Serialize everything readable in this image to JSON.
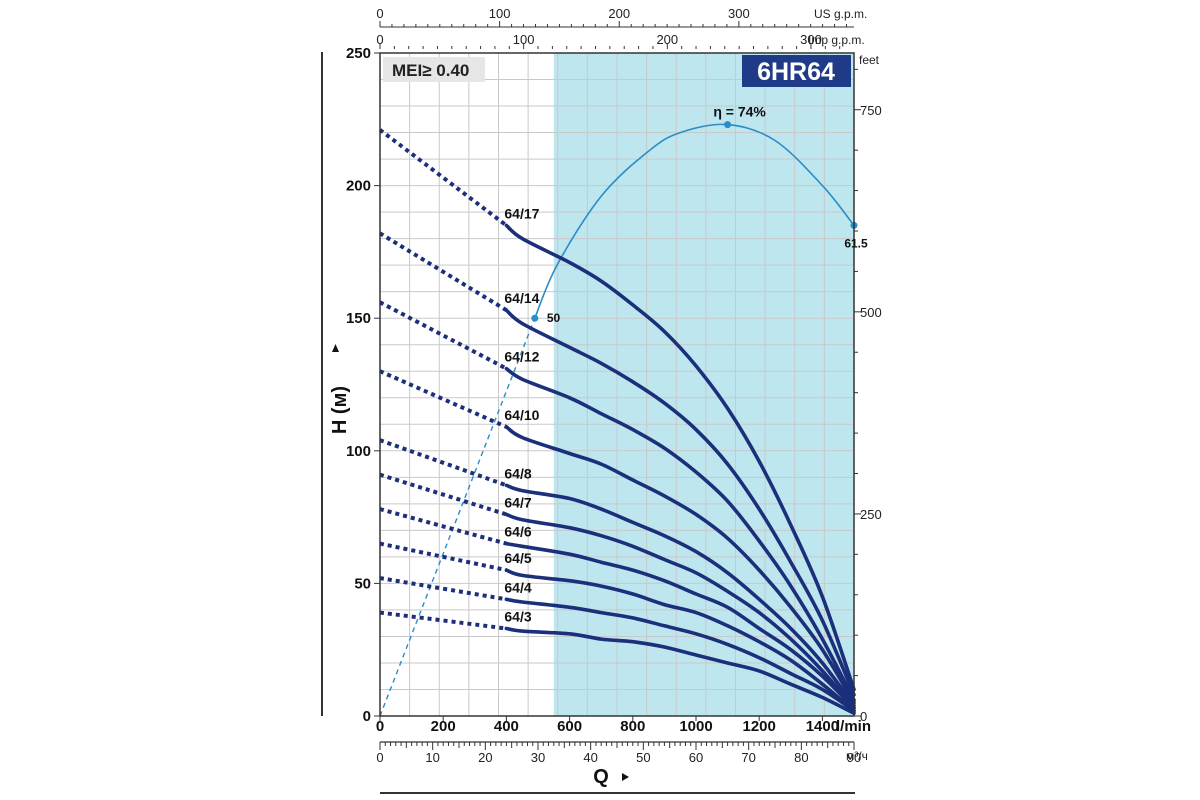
{
  "chart_data": {
    "type": "line",
    "model": "6HR64",
    "badge": "MEI≥ 0.40",
    "xlabel_units": "l/min",
    "x_secondary_units": "м³/ч",
    "ylabel": "H (м)",
    "y_right_units": "feet",
    "x_title": "Q",
    "x_top_units_1": "US g.p.m.",
    "x_top_units_2": "Imp g.p.m.",
    "xlim": [
      0,
      1500
    ],
    "ylim": [
      0,
      250
    ],
    "x_ticks": [
      "0",
      "200",
      "400",
      "600",
      "800",
      "1000",
      "1200",
      "1400"
    ],
    "y_ticks": [
      "0",
      "50",
      "100",
      "150",
      "200",
      "250"
    ],
    "m3h_ticks": [
      "0",
      "10",
      "20",
      "30",
      "40",
      "50",
      "60",
      "70",
      "80",
      "90"
    ],
    "us_gpm_ticks": [
      "0",
      "100",
      "200",
      "300"
    ],
    "imp_gpm_ticks": [
      "0",
      "100",
      "200",
      "300"
    ],
    "feet_ticks": [
      "0",
      "250",
      "500",
      "750"
    ],
    "recommended_range": [
      550,
      1500
    ],
    "efficiency": {
      "peak_label": "η = 74%",
      "left_label": "50",
      "right_label": "61.5",
      "points": [
        [
          0,
          0
        ],
        [
          490,
          150
        ],
        [
          560,
          170
        ],
        [
          700,
          196
        ],
        [
          850,
          213
        ],
        [
          950,
          220
        ],
        [
          1100,
          223
        ],
        [
          1250,
          217
        ],
        [
          1400,
          200
        ],
        [
          1500,
          185
        ]
      ]
    },
    "series": [
      {
        "name": "64/17",
        "dashed": [
          [
            0,
            221
          ],
          [
            400,
            185
          ]
        ],
        "solid": [
          [
            400,
            185
          ],
          [
            450,
            180
          ],
          [
            600,
            171
          ],
          [
            700,
            164
          ],
          [
            800,
            155
          ],
          [
            900,
            145
          ],
          [
            1000,
            132
          ],
          [
            1100,
            116
          ],
          [
            1200,
            96
          ],
          [
            1300,
            72
          ],
          [
            1400,
            45
          ],
          [
            1500,
            10
          ]
        ]
      },
      {
        "name": "64/14",
        "dashed": [
          [
            0,
            182
          ],
          [
            400,
            153
          ]
        ],
        "solid": [
          [
            400,
            153
          ],
          [
            450,
            148
          ],
          [
            600,
            139
          ],
          [
            700,
            133
          ],
          [
            800,
            126
          ],
          [
            900,
            118
          ],
          [
            1000,
            108
          ],
          [
            1100,
            95
          ],
          [
            1200,
            78
          ],
          [
            1300,
            58
          ],
          [
            1400,
            36
          ],
          [
            1500,
            8
          ]
        ]
      },
      {
        "name": "64/12",
        "dashed": [
          [
            0,
            156
          ],
          [
            400,
            131
          ]
        ],
        "solid": [
          [
            400,
            131
          ],
          [
            450,
            127
          ],
          [
            600,
            120
          ],
          [
            700,
            114
          ],
          [
            800,
            108
          ],
          [
            900,
            101
          ],
          [
            1000,
            92
          ],
          [
            1100,
            81
          ],
          [
            1200,
            66
          ],
          [
            1300,
            49
          ],
          [
            1400,
            29
          ],
          [
            1500,
            6
          ]
        ]
      },
      {
        "name": "64/10",
        "dashed": [
          [
            0,
            130
          ],
          [
            400,
            109
          ]
        ],
        "solid": [
          [
            400,
            109
          ],
          [
            450,
            105
          ],
          [
            600,
            99
          ],
          [
            700,
            95
          ],
          [
            800,
            89
          ],
          [
            900,
            83
          ],
          [
            1000,
            76
          ],
          [
            1100,
            67
          ],
          [
            1200,
            55
          ],
          [
            1300,
            41
          ],
          [
            1400,
            25
          ],
          [
            1500,
            5
          ]
        ]
      },
      {
        "name": "64/8",
        "dashed": [
          [
            0,
            104
          ],
          [
            400,
            87
          ]
        ],
        "solid": [
          [
            400,
            87
          ],
          [
            450,
            85
          ],
          [
            600,
            82
          ],
          [
            700,
            78
          ],
          [
            800,
            73
          ],
          [
            900,
            68
          ],
          [
            1000,
            62
          ],
          [
            1100,
            54
          ],
          [
            1200,
            44
          ],
          [
            1300,
            33
          ],
          [
            1400,
            20
          ],
          [
            1500,
            4
          ]
        ]
      },
      {
        "name": "64/7",
        "dashed": [
          [
            0,
            91
          ],
          [
            400,
            76
          ]
        ],
        "solid": [
          [
            400,
            76
          ],
          [
            450,
            74
          ],
          [
            600,
            71
          ],
          [
            700,
            68
          ],
          [
            800,
            64
          ],
          [
            900,
            59
          ],
          [
            1000,
            54
          ],
          [
            1100,
            47
          ],
          [
            1200,
            39
          ],
          [
            1300,
            29
          ],
          [
            1400,
            17
          ],
          [
            1500,
            3
          ]
        ]
      },
      {
        "name": "64/6",
        "dashed": [
          [
            0,
            78
          ],
          [
            400,
            65
          ]
        ],
        "solid": [
          [
            400,
            65
          ],
          [
            450,
            64
          ],
          [
            600,
            61
          ],
          [
            700,
            58
          ],
          [
            800,
            55
          ],
          [
            900,
            51
          ],
          [
            1000,
            46
          ],
          [
            1100,
            41
          ],
          [
            1200,
            33
          ],
          [
            1300,
            25
          ],
          [
            1400,
            15
          ],
          [
            1500,
            3
          ]
        ]
      },
      {
        "name": "64/5",
        "dashed": [
          [
            0,
            65
          ],
          [
            400,
            55
          ]
        ],
        "solid": [
          [
            400,
            55
          ],
          [
            450,
            53
          ],
          [
            600,
            51
          ],
          [
            700,
            49
          ],
          [
            800,
            46
          ],
          [
            900,
            42
          ],
          [
            1000,
            39
          ],
          [
            1100,
            34
          ],
          [
            1200,
            28
          ],
          [
            1300,
            21
          ],
          [
            1400,
            12
          ],
          [
            1500,
            2
          ]
        ]
      },
      {
        "name": "64/4",
        "dashed": [
          [
            0,
            52
          ],
          [
            400,
            44
          ]
        ],
        "solid": [
          [
            400,
            44
          ],
          [
            450,
            43
          ],
          [
            600,
            41
          ],
          [
            700,
            39
          ],
          [
            800,
            37
          ],
          [
            900,
            34
          ],
          [
            1000,
            31
          ],
          [
            1100,
            27
          ],
          [
            1200,
            22
          ],
          [
            1300,
            16
          ],
          [
            1400,
            10
          ],
          [
            1500,
            2
          ]
        ]
      },
      {
        "name": "64/3",
        "dashed": [
          [
            0,
            39
          ],
          [
            400,
            33
          ]
        ],
        "solid": [
          [
            400,
            33
          ],
          [
            450,
            32
          ],
          [
            600,
            31
          ],
          [
            700,
            29
          ],
          [
            800,
            28
          ],
          [
            900,
            26
          ],
          [
            1000,
            23
          ],
          [
            1100,
            20
          ],
          [
            1200,
            17
          ],
          [
            1300,
            12
          ],
          [
            1400,
            7
          ],
          [
            1500,
            1
          ]
        ]
      }
    ]
  }
}
